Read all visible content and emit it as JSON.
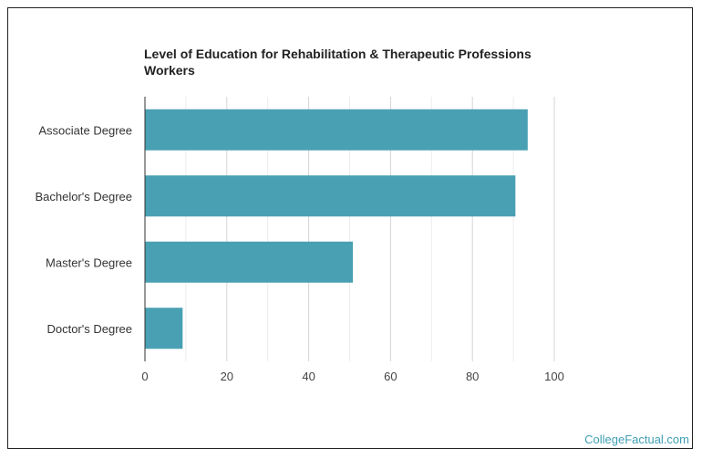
{
  "chart_data": {
    "type": "bar",
    "orientation": "horizontal",
    "title": "Level of Education for Rehabilitation & Therapeutic Professions Workers",
    "categories": [
      "Associate Degree",
      "Bachelor's Degree",
      "Master's Degree",
      "Doctor's Degree"
    ],
    "values": [
      93.5,
      90.5,
      50.8,
      9.2
    ],
    "xlim": [
      0,
      100
    ],
    "xticks": [
      "0",
      "20",
      "40",
      "60",
      "80",
      "100"
    ],
    "grid": true,
    "bar_color": "#4aa0b3",
    "xlabel": "",
    "ylabel": ""
  },
  "watermark": "CollegeFactual.com"
}
